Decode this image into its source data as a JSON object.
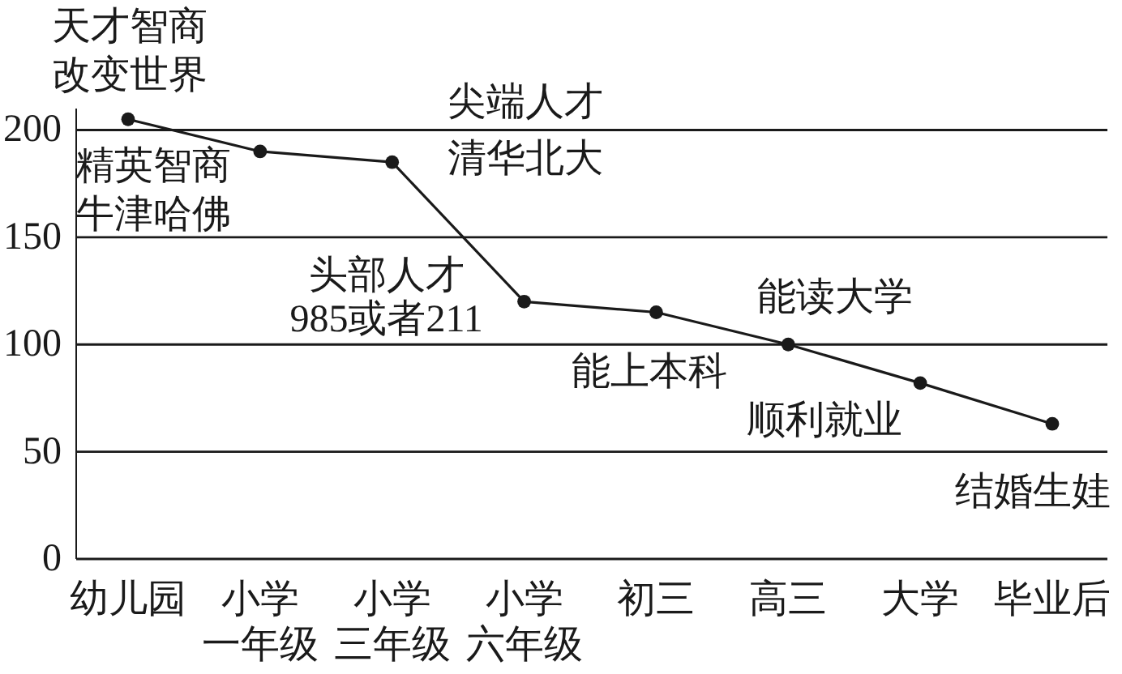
{
  "chart_data": {
    "type": "line",
    "categories": [
      "幼儿园",
      "小学一年级",
      "小学三年级",
      "小学六年级",
      "初三",
      "高三",
      "大学",
      "毕业后"
    ],
    "series": [
      {
        "color": "#1a1a1a",
        "values": [
          205,
          190,
          185,
          120,
          115,
          100,
          82,
          63
        ]
      }
    ],
    "ylim": [
      0,
      210
    ],
    "yticks": [
      0,
      50,
      100,
      150,
      200
    ],
    "grid": "y",
    "marker": "circle",
    "line_style": "solid",
    "annotations": [
      {
        "text": "天才智商改变世界",
        "x": "幼儿园",
        "y": 205
      },
      {
        "text": "精英智商牛津哈佛",
        "x": "小学一年级",
        "y": 190
      },
      {
        "text": "尖端人才清华北大",
        "x": "小学三年级",
        "y": 185
      },
      {
        "text": "头部人才985或者211",
        "x": "小学六年级",
        "y": 120
      },
      {
        "text": "能上本科",
        "x": "初三",
        "y": 115
      },
      {
        "text": "能读大学",
        "x": "高三",
        "y": 100
      },
      {
        "text": "顺利就业",
        "x": "大学",
        "y": 82
      },
      {
        "text": "结婚生娃",
        "x": "毕业后",
        "y": 63
      }
    ]
  }
}
